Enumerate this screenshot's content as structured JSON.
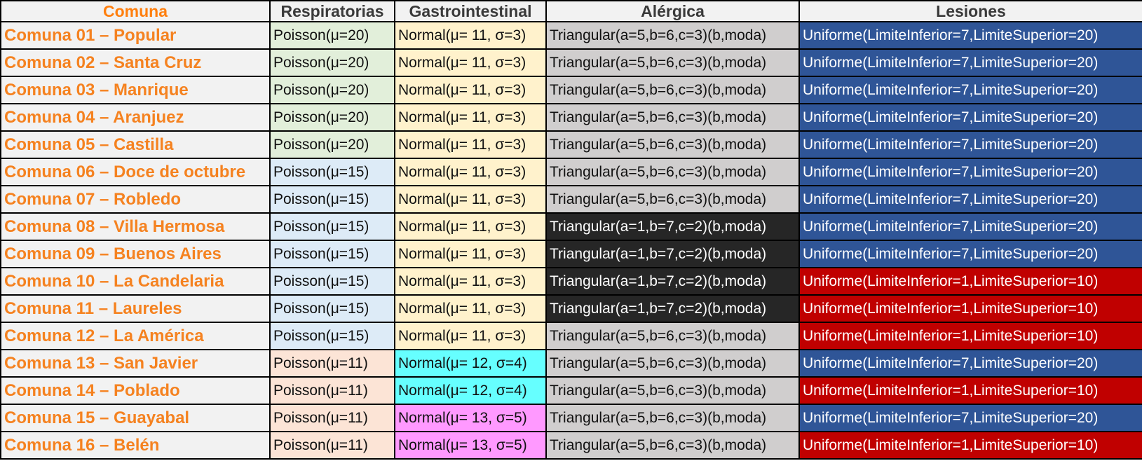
{
  "headers": {
    "comuna": "Comuna",
    "respiratorias": "Respiratorias",
    "gastrointestinal": "Gastrointestinal",
    "alergica": "Alérgica",
    "lesiones": "Lesiones"
  },
  "colors": {
    "resp_green": "#e2efda",
    "resp_blue": "#ddebf7",
    "resp_peach": "#fce4d6",
    "gastro_yellow": "#fff2cc",
    "gastro_cyan": "#66ffff",
    "gastro_pink": "#ff99ff",
    "alerg_gray": "#d0cece",
    "alerg_black": "#262626",
    "les_blue": "#2f5597",
    "les_red": "#c00000"
  },
  "rows": [
    {
      "comuna": "Comuna 01 – Popular",
      "resp": "Poisson(μ=20)",
      "resp_color": "#e2efda",
      "gastro": "Normal(μ= 11, σ=3)",
      "gastro_color": "#fff2cc",
      "alerg": "Triangular(a=5,b=6,c=3)(b,moda)",
      "alerg_color": "#d0cece",
      "alerg_text": "#111111",
      "les": "Uniforme(LimiteInferior=7,LimiteSuperior=20)",
      "les_color": "#2f5597"
    },
    {
      "comuna": "Comuna 02 – Santa Cruz",
      "resp": "Poisson(μ=20)",
      "resp_color": "#e2efda",
      "gastro": "Normal(μ= 11, σ=3)",
      "gastro_color": "#fff2cc",
      "alerg": "Triangular(a=5,b=6,c=3)(b,moda)",
      "alerg_color": "#d0cece",
      "alerg_text": "#111111",
      "les": "Uniforme(LimiteInferior=7,LimiteSuperior=20)",
      "les_color": "#2f5597"
    },
    {
      "comuna": "Comuna 03 – Manrique",
      "resp": "Poisson(μ=20)",
      "resp_color": "#e2efda",
      "gastro": "Normal(μ= 11, σ=3)",
      "gastro_color": "#fff2cc",
      "alerg": "Triangular(a=5,b=6,c=3)(b,moda)",
      "alerg_color": "#d0cece",
      "alerg_text": "#111111",
      "les": "Uniforme(LimiteInferior=7,LimiteSuperior=20)",
      "les_color": "#2f5597"
    },
    {
      "comuna": "Comuna 04 – Aranjuez",
      "resp": "Poisson(μ=20)",
      "resp_color": "#e2efda",
      "gastro": "Normal(μ= 11, σ=3)",
      "gastro_color": "#fff2cc",
      "alerg": "Triangular(a=5,b=6,c=3)(b,moda)",
      "alerg_color": "#d0cece",
      "alerg_text": "#111111",
      "les": "Uniforme(LimiteInferior=7,LimiteSuperior=20)",
      "les_color": "#2f5597"
    },
    {
      "comuna": "Comuna 05 – Castilla",
      "resp": "Poisson(μ=20)",
      "resp_color": "#e2efda",
      "gastro": "Normal(μ= 11, σ=3)",
      "gastro_color": "#fff2cc",
      "alerg": "Triangular(a=5,b=6,c=3)(b,moda)",
      "alerg_color": "#d0cece",
      "alerg_text": "#111111",
      "les": "Uniforme(LimiteInferior=7,LimiteSuperior=20)",
      "les_color": "#2f5597"
    },
    {
      "comuna": "Comuna 06 – Doce de octubre",
      "resp": "Poisson(μ=15)",
      "resp_color": "#ddebf7",
      "gastro": "Normal(μ= 11, σ=3)",
      "gastro_color": "#fff2cc",
      "alerg": "Triangular(a=5,b=6,c=3)(b,moda)",
      "alerg_color": "#d0cece",
      "alerg_text": "#111111",
      "les": "Uniforme(LimiteInferior=7,LimiteSuperior=20)",
      "les_color": "#2f5597"
    },
    {
      "comuna": "Comuna 07 – Robledo",
      "resp": "Poisson(μ=15)",
      "resp_color": "#ddebf7",
      "gastro": "Normal(μ= 11, σ=3)",
      "gastro_color": "#fff2cc",
      "alerg": "Triangular(a=5,b=6,c=3)(b,moda)",
      "alerg_color": "#d0cece",
      "alerg_text": "#111111",
      "les": "Uniforme(LimiteInferior=7,LimiteSuperior=20)",
      "les_color": "#2f5597"
    },
    {
      "comuna": "Comuna 08 – Villa Hermosa",
      "resp": "Poisson(μ=15)",
      "resp_color": "#ddebf7",
      "gastro": "Normal(μ= 11, σ=3)",
      "gastro_color": "#fff2cc",
      "alerg": "Triangular(a=1,b=7,c=2)(b,moda)",
      "alerg_color": "#262626",
      "alerg_text": "#ffffff",
      "les": "Uniforme(LimiteInferior=7,LimiteSuperior=20)",
      "les_color": "#2f5597"
    },
    {
      "comuna": "Comuna 09 – Buenos Aires",
      "resp": "Poisson(μ=15)",
      "resp_color": "#ddebf7",
      "gastro": "Normal(μ= 11, σ=3)",
      "gastro_color": "#fff2cc",
      "alerg": "Triangular(a=1,b=7,c=2)(b,moda)",
      "alerg_color": "#262626",
      "alerg_text": "#ffffff",
      "les": "Uniforme(LimiteInferior=7,LimiteSuperior=20)",
      "les_color": "#2f5597"
    },
    {
      "comuna": "Comuna 10 – La Candelaria",
      "resp": "Poisson(μ=15)",
      "resp_color": "#ddebf7",
      "gastro": "Normal(μ= 11, σ=3)",
      "gastro_color": "#fff2cc",
      "alerg": "Triangular(a=1,b=7,c=2)(b,moda)",
      "alerg_color": "#262626",
      "alerg_text": "#ffffff",
      "les": "Uniforme(LimiteInferior=1,LimiteSuperior=10)",
      "les_color": "#c00000"
    },
    {
      "comuna": "Comuna 11 – Laureles",
      "resp": "Poisson(μ=15)",
      "resp_color": "#ddebf7",
      "gastro": "Normal(μ= 11, σ=3)",
      "gastro_color": "#fff2cc",
      "alerg": "Triangular(a=1,b=7,c=2)(b,moda)",
      "alerg_color": "#262626",
      "alerg_text": "#ffffff",
      "les": "Uniforme(LimiteInferior=1,LimiteSuperior=10)",
      "les_color": "#c00000"
    },
    {
      "comuna": "Comuna 12 – La América",
      "resp": "Poisson(μ=15)",
      "resp_color": "#ddebf7",
      "gastro": "Normal(μ= 11, σ=3)",
      "gastro_color": "#fff2cc",
      "alerg": "Triangular(a=5,b=6,c=3)(b,moda)",
      "alerg_color": "#d0cece",
      "alerg_text": "#111111",
      "les": "Uniforme(LimiteInferior=1,LimiteSuperior=10)",
      "les_color": "#c00000"
    },
    {
      "comuna": "Comuna 13 – San Javier",
      "resp": "Poisson(μ=11)",
      "resp_color": "#fce4d6",
      "gastro": "Normal(μ= 12, σ=4)",
      "gastro_color": "#66ffff",
      "alerg": "Triangular(a=5,b=6,c=3)(b,moda)",
      "alerg_color": "#d0cece",
      "alerg_text": "#111111",
      "les": "Uniforme(LimiteInferior=7,LimiteSuperior=20)",
      "les_color": "#2f5597"
    },
    {
      "comuna": "Comuna 14 – Poblado",
      "resp": "Poisson(μ=11)",
      "resp_color": "#fce4d6",
      "gastro": "Normal(μ= 12, σ=4)",
      "gastro_color": "#66ffff",
      "alerg": "Triangular(a=5,b=6,c=3)(b,moda)",
      "alerg_color": "#d0cece",
      "alerg_text": "#111111",
      "les": "Uniforme(LimiteInferior=1,LimiteSuperior=10)",
      "les_color": "#c00000"
    },
    {
      "comuna": "Comuna 15 – Guayabal",
      "resp": "Poisson(μ=11)",
      "resp_color": "#fce4d6",
      "gastro": "Normal(μ= 13, σ=5)",
      "gastro_color": "#ff99ff",
      "alerg": "Triangular(a=5,b=6,c=3)(b,moda)",
      "alerg_color": "#d0cece",
      "alerg_text": "#111111",
      "les": "Uniforme(LimiteInferior=7,LimiteSuperior=20)",
      "les_color": "#2f5597"
    },
    {
      "comuna": "Comuna 16 – Belén",
      "resp": "Poisson(μ=11)",
      "resp_color": "#fce4d6",
      "gastro": "Normal(μ= 13, σ=5)",
      "gastro_color": "#ff99ff",
      "alerg": "Triangular(a=5,b=6,c=3)(b,moda)",
      "alerg_color": "#d0cece",
      "alerg_text": "#111111",
      "les": "Uniforme(LimiteInferior=1,LimiteSuperior=10)",
      "les_color": "#c00000"
    }
  ]
}
